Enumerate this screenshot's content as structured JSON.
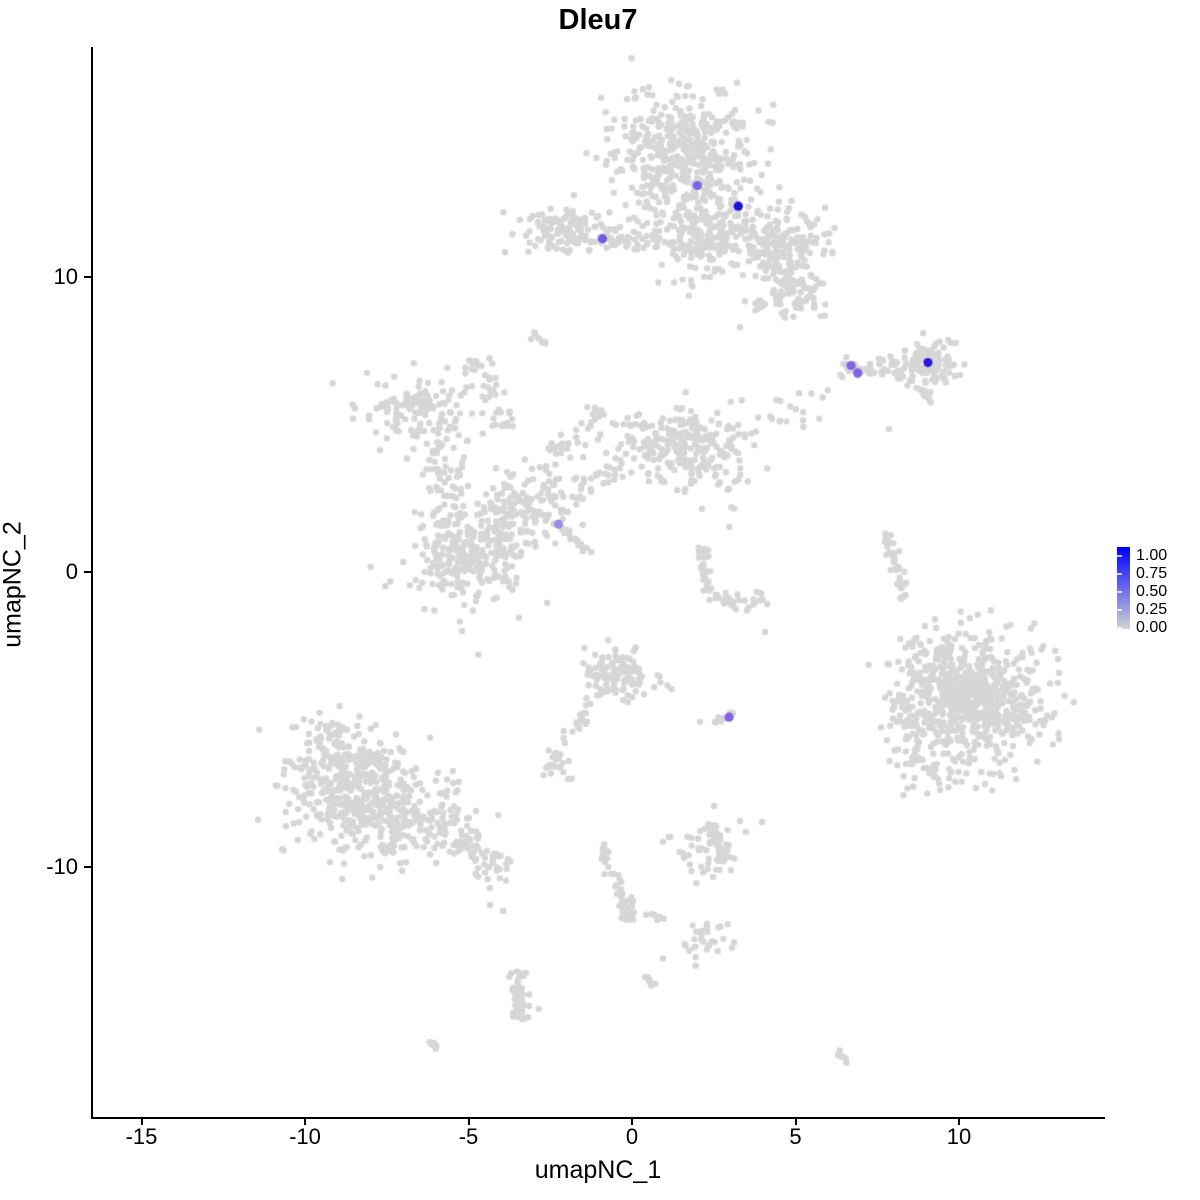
{
  "title": "Dleu7",
  "axes": {
    "x": {
      "label": "umapNC_1",
      "ticks": [
        -15,
        -10,
        -5,
        0,
        5,
        10
      ]
    },
    "y": {
      "label": "umapNC_2",
      "ticks": [
        10,
        0,
        -10
      ]
    }
  },
  "legend": {
    "labels": [
      "1.00",
      "0.75",
      "0.50",
      "0.25",
      "0.00"
    ],
    "color_high": "#0000ff",
    "color_low": "#d3d3d3"
  },
  "colors": {
    "background_points": "#d6d6d6",
    "axis": "#000000",
    "background": "#ffffff"
  },
  "chart_data": {
    "type": "scatter",
    "title": "Dleu7",
    "xlabel": "umapNC_1",
    "ylabel": "umapNC_2",
    "xlim": [
      -16.5,
      14.4
    ],
    "ylim": [
      -18.5,
      17.8
    ],
    "grid": false,
    "legend_position": "right",
    "color_scale": {
      "low": "#d3d3d3",
      "high": "#0000ff",
      "domain": [
        0,
        1
      ]
    },
    "seed": 42,
    "background_clusters": [
      {
        "kind": "gauss",
        "x": 1.55,
        "y": 14.1,
        "sx": 1.05,
        "sy": 1.0,
        "n": 450
      },
      {
        "kind": "gauss",
        "x": 2.25,
        "y": 11.6,
        "sx": 0.85,
        "sy": 0.75,
        "n": 220
      },
      {
        "kind": "gauss",
        "x": 4.55,
        "y": 11.1,
        "sx": 0.7,
        "sy": 0.65,
        "n": 170
      },
      {
        "kind": "gauss",
        "x": 5.0,
        "y": 9.5,
        "sx": 0.5,
        "sy": 0.5,
        "n": 80
      },
      {
        "kind": "gauss",
        "x": 3.98,
        "y": 8.98,
        "sx": 0.2,
        "sy": 0.15,
        "n": 10
      },
      {
        "kind": "gauss",
        "x": 0.55,
        "y": 11.25,
        "sx": 0.5,
        "sy": 0.2,
        "n": 20
      },
      {
        "kind": "gauss",
        "x": -2.05,
        "y": 11.55,
        "sx": 0.75,
        "sy": 0.4,
        "n": 130
      },
      {
        "kind": "line",
        "x1": -0.89,
        "y1": 11.32,
        "x2": 0.24,
        "y2": 11.22,
        "sd": 0.12,
        "n": 15
      },
      {
        "kind": "line",
        "x1": -3.12,
        "y1": 8.14,
        "x2": -2.66,
        "y2": 7.76,
        "sd": 0.07,
        "n": 9
      },
      {
        "kind": "gauss",
        "x": -4.75,
        "y": 7.0,
        "sx": 0.22,
        "sy": 0.18,
        "n": 14
      },
      {
        "kind": "gauss",
        "x": 9.05,
        "y": 7.05,
        "sx": 0.5,
        "sy": 0.32,
        "n": 110
      },
      {
        "kind": "line",
        "x1": 6.51,
        "y1": 6.85,
        "x2": 8.2,
        "y2": 6.92,
        "sd": 0.16,
        "n": 40
      },
      {
        "kind": "line",
        "x1": 8.75,
        "y1": 6.2,
        "x2": 9.14,
        "y2": 5.8,
        "sd": 0.06,
        "n": 10
      },
      {
        "kind": "gauss",
        "x": -6.48,
        "y": 5.49,
        "sx": 0.85,
        "sy": 0.6,
        "n": 140
      },
      {
        "kind": "line",
        "x1": -5.87,
        "y1": 4.14,
        "x2": -5.41,
        "y2": 1.93,
        "sd": 0.3,
        "n": 55
      },
      {
        "kind": "gauss",
        "x": -3.73,
        "y": 1.93,
        "sx": 0.65,
        "sy": 0.7,
        "n": 130
      },
      {
        "kind": "gauss",
        "x": -5.11,
        "y": 0.51,
        "sx": 0.85,
        "sy": 0.75,
        "n": 240
      },
      {
        "kind": "line",
        "x1": -3.88,
        "y1": 4.75,
        "x2": -4.34,
        "y2": 6.58,
        "sd": 0.15,
        "n": 25
      },
      {
        "kind": "line",
        "x1": -2.35,
        "y1": 3.97,
        "x2": -0.98,
        "y2": 5.32,
        "sd": 0.25,
        "n": 30
      },
      {
        "kind": "gauss",
        "x": -2.6,
        "y": 3.0,
        "sx": 0.5,
        "sy": 0.5,
        "n": 25
      },
      {
        "kind": "gauss",
        "x": 1.47,
        "y": 4.31,
        "sx": 0.95,
        "sy": 0.65,
        "n": 240
      },
      {
        "kind": "line",
        "x1": -0.37,
        "y1": 3.73,
        "x2": -2.57,
        "y2": 1.9,
        "sd": 0.22,
        "n": 45
      },
      {
        "kind": "line",
        "x1": -2.54,
        "y1": 1.83,
        "x2": -1.22,
        "y2": 0.61,
        "sd": 0.05,
        "n": 28
      },
      {
        "kind": "line",
        "x1": 3.3,
        "y1": 4.81,
        "x2": 6.36,
        "y2": 6.17,
        "sd": 0.3,
        "n": 22
      },
      {
        "kind": "gauss",
        "x": 2.6,
        "y": 2.6,
        "sx": 0.55,
        "sy": 0.55,
        "n": 12
      },
      {
        "kind": "arc",
        "x": 3.3,
        "y": 0.2,
        "r": 1.25,
        "a1": 150,
        "a2": 305,
        "sd": 0.13,
        "n": 60
      },
      {
        "kind": "line",
        "x1": 7.71,
        "y1": 1.36,
        "x2": 8.1,
        "y2": 0.2,
        "sd": 0.08,
        "n": 22
      },
      {
        "kind": "line",
        "x1": 8.1,
        "y1": 0.2,
        "x2": 8.29,
        "y2": -0.95,
        "sd": 0.08,
        "n": 22
      },
      {
        "kind": "gauss",
        "x": 10.49,
        "y": -4.34,
        "sx": 1.0,
        "sy": 0.95,
        "n": 650
      },
      {
        "kind": "gauss",
        "x": 8.6,
        "y": -4.7,
        "sx": 0.45,
        "sy": 1.1,
        "n": 70
      },
      {
        "kind": "gauss",
        "x": 9.0,
        "y": -2.8,
        "sx": 0.5,
        "sy": 0.5,
        "n": 30
      },
      {
        "kind": "gauss",
        "x": 9.6,
        "y": -6.7,
        "sx": 0.7,
        "sy": 0.35,
        "n": 40
      },
      {
        "kind": "line",
        "x1": 2.48,
        "y1": -5.08,
        "x2": 3.12,
        "y2": -4.78,
        "sd": 0.07,
        "n": 10
      },
      {
        "kind": "gauss",
        "x": -0.37,
        "y": -3.49,
        "sx": 0.55,
        "sy": 0.45,
        "n": 110
      },
      {
        "kind": "line",
        "x1": -1.22,
        "y1": -4.41,
        "x2": -2.54,
        "y2": -6.44,
        "sd": 0.13,
        "n": 26
      },
      {
        "kind": "gauss",
        "x": -2.3,
        "y": -6.6,
        "sx": 0.3,
        "sy": 0.2,
        "n": 15
      },
      {
        "kind": "gauss",
        "x": -8.6,
        "y": -7.0,
        "sx": 1.1,
        "sy": 0.75,
        "n": 280
      },
      {
        "kind": "gauss",
        "x": -7.6,
        "y": -8.3,
        "sx": 1.2,
        "sy": 0.8,
        "n": 280
      },
      {
        "kind": "line",
        "x1": -6.12,
        "y1": -8.47,
        "x2": -3.79,
        "y2": -10.37,
        "sd": 0.3,
        "n": 80
      },
      {
        "kind": "gauss",
        "x": -9.3,
        "y": -5.45,
        "sx": 0.45,
        "sy": 0.35,
        "n": 45
      },
      {
        "kind": "line",
        "x1": -0.89,
        "y1": -9.25,
        "x2": -0.55,
        "y2": -10.44,
        "sd": 0.1,
        "n": 18
      },
      {
        "kind": "line",
        "x1": -0.55,
        "y1": -10.44,
        "x2": -0.06,
        "y2": -11.66,
        "sd": 0.1,
        "n": 18
      },
      {
        "kind": "gauss",
        "x": -0.2,
        "y": -11.55,
        "sx": 0.18,
        "sy": 0.22,
        "n": 15
      },
      {
        "kind": "line",
        "x1": 0.49,
        "y1": -11.66,
        "x2": 1.01,
        "y2": -11.8,
        "sd": 0.06,
        "n": 6
      },
      {
        "kind": "gauss",
        "x": 2.15,
        "y": -12.55,
        "sx": 0.45,
        "sy": 0.3,
        "n": 30
      },
      {
        "kind": "gauss",
        "x": 2.4,
        "y": -9.3,
        "sx": 0.55,
        "sy": 0.45,
        "n": 70
      },
      {
        "kind": "line",
        "x1": -3.46,
        "y1": -13.66,
        "x2": -3.36,
        "y2": -15.12,
        "sd": 0.15,
        "n": 45
      },
      {
        "kind": "line",
        "x1": -6.21,
        "y1": -15.86,
        "x2": -5.87,
        "y2": -16.17,
        "sd": 0.05,
        "n": 7
      },
      {
        "kind": "line",
        "x1": 0.43,
        "y1": -13.73,
        "x2": 0.73,
        "y2": -14.03,
        "sd": 0.05,
        "n": 7
      },
      {
        "kind": "line",
        "x1": 6.24,
        "y1": -16.2,
        "x2": 6.57,
        "y2": -16.61,
        "sd": 0.05,
        "n": 7
      }
    ],
    "background_singles": [
      [
        7.86,
        4.85
      ],
      [
        4.07,
        -2.03
      ],
      [
        2.08,
        -5.08
      ],
      [
        -4.34,
        -11.29
      ],
      [
        -3.94,
        -11.49
      ],
      [
        2.51,
        -7.93
      ],
      [
        9.3,
        -1.9
      ],
      [
        -5.2,
        -2.0
      ],
      [
        -4.7,
        -2.8
      ],
      [
        0.95,
        -13.1
      ],
      [
        3.3,
        8.3
      ],
      [
        -0.73,
        -2.31
      ]
    ],
    "expressing_cells": [
      {
        "x": 2.0,
        "y": 13.1,
        "value": 0.45,
        "color": "#7c64e8"
      },
      {
        "x": 3.25,
        "y": 12.4,
        "value": 0.95,
        "color": "#1a10dc"
      },
      {
        "x": -0.9,
        "y": 11.3,
        "value": 0.5,
        "color": "#6f5be4"
      },
      {
        "x": 6.7,
        "y": 7.0,
        "value": 0.5,
        "color": "#8068e4"
      },
      {
        "x": 6.9,
        "y": 6.75,
        "value": 0.5,
        "color": "#7e66e4"
      },
      {
        "x": 9.05,
        "y": 7.1,
        "value": 0.9,
        "color": "#2a1ade"
      },
      {
        "x": -2.25,
        "y": 1.62,
        "value": 0.35,
        "color": "#9c8ce2"
      },
      {
        "x": 2.97,
        "y": -4.92,
        "value": 0.5,
        "color": "#7e64e6"
      }
    ]
  }
}
